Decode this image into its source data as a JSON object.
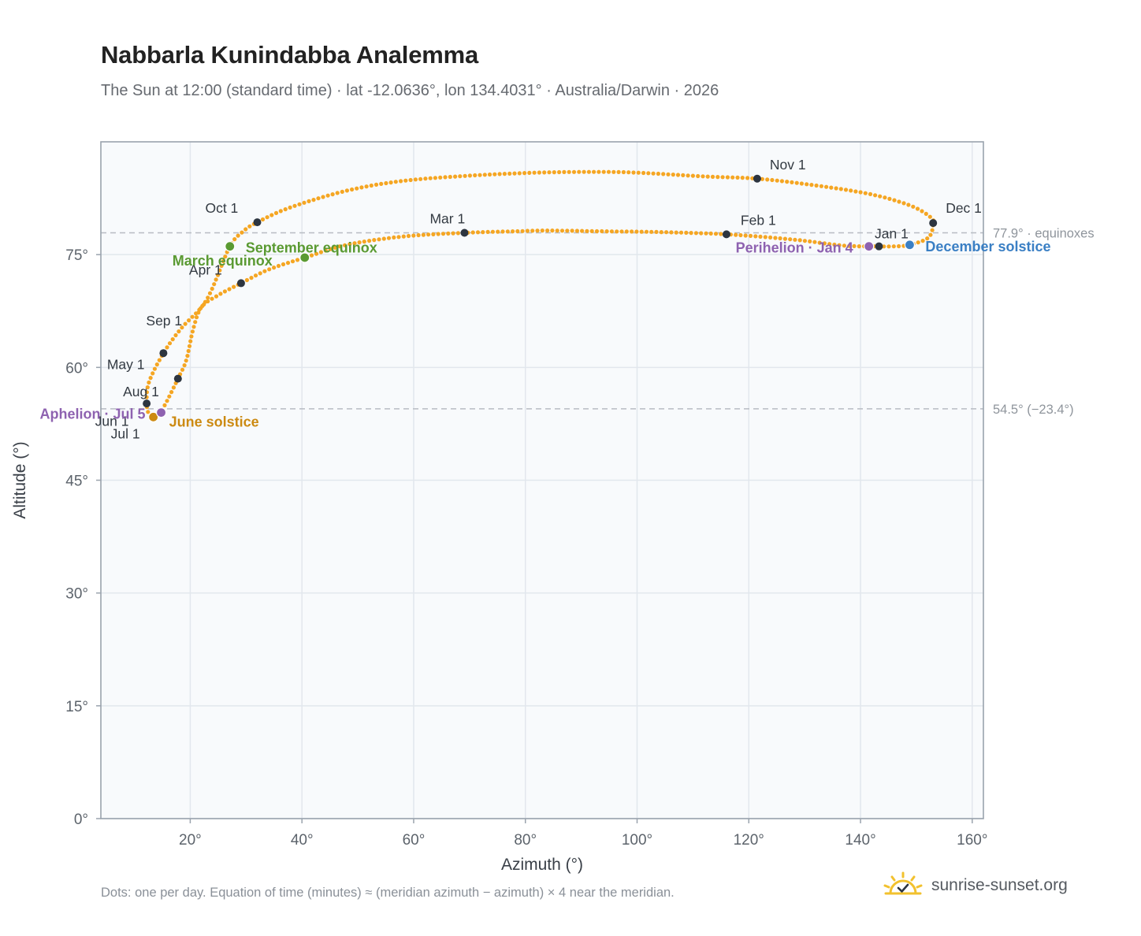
{
  "header": {
    "title": "Nabbarla Kunindabba Analemma",
    "subtitle": "The Sun at 12:00 (standard time) · lat -12.0636°, lon 134.4031° · Australia/Darwin · 2026"
  },
  "footer": {
    "note": "Dots: one per day. Equation of time (minutes) ≈ (meridian azimuth − azimuth) × 4 near the meridian.",
    "brand": "sunrise-sunset.org"
  },
  "colors": {
    "curve": "#f5a623",
    "month_marker": "#2d3540",
    "equinox": "#5a9a32",
    "june_solstice": "#cc8a12",
    "december_solstice": "#3a7fc4",
    "apsis": "#8e62b0",
    "reference_line": "#b8bcc2",
    "plot_background": "#f8fafc",
    "grid": "#e2e7ed",
    "frame": "#9aa3ad"
  },
  "chart_data": {
    "type": "scatter",
    "title": "Nabbarla Kunindabba Analemma",
    "subtitle": "The Sun at 12:00 (standard time) · lat -12.0636°, lon 134.4031° · Australia/Darwin · 2026",
    "xlabel": "Azimuth (°)",
    "ylabel": "Altitude (°)",
    "xlim": [
      4,
      162
    ],
    "ylim": [
      0,
      90
    ],
    "x_ticks": [
      20,
      40,
      60,
      80,
      100,
      120,
      140,
      160
    ],
    "x_tick_labels": [
      "20°",
      "40°",
      "60°",
      "80°",
      "100°",
      "120°",
      "140°",
      "160°"
    ],
    "y_ticks": [
      0,
      15,
      30,
      45,
      60,
      75
    ],
    "y_tick_labels": [
      "0°",
      "15°",
      "30°",
      "45°",
      "60°",
      "75°"
    ],
    "grid": true,
    "legend": "none",
    "series": [
      {
        "path_points": [
          [
            143.3,
            76.1
          ],
          [
            137.0,
            76.2
          ],
          [
            128.0,
            77.0
          ],
          [
            116.0,
            77.7
          ],
          [
            104.0,
            78.0
          ],
          [
            94.0,
            78.1
          ],
          [
            84.0,
            78.2
          ],
          [
            78.0,
            78.1
          ],
          [
            69.1,
            77.9
          ],
          [
            58.0,
            77.4
          ],
          [
            48.0,
            76.3
          ],
          [
            40.5,
            74.6
          ],
          [
            34.0,
            73.0
          ],
          [
            29.1,
            71.2
          ],
          [
            25.0,
            69.6
          ],
          [
            22.0,
            68.0
          ],
          [
            20.5,
            65.0
          ],
          [
            19.3,
            61.0
          ],
          [
            17.8,
            58.5
          ],
          [
            15.6,
            55.2
          ],
          [
            14.5,
            54.0
          ],
          [
            13.4,
            53.4
          ],
          [
            12.6,
            53.8
          ],
          [
            12.2,
            55.2
          ],
          [
            12.6,
            58.0
          ],
          [
            15.2,
            61.9
          ],
          [
            18.4,
            65.2
          ],
          [
            22.0,
            68.0
          ],
          [
            24.0,
            70.6
          ],
          [
            27.1,
            76.1
          ],
          [
            29.5,
            78.1
          ],
          [
            32.0,
            79.3
          ],
          [
            38.0,
            81.3
          ],
          [
            48.0,
            83.5
          ],
          [
            58.0,
            84.8
          ],
          [
            70.0,
            85.5
          ],
          [
            82.0,
            85.9
          ],
          [
            92.0,
            86.0
          ],
          [
            100.0,
            85.9
          ],
          [
            112.0,
            85.4
          ],
          [
            121.5,
            85.1
          ],
          [
            132.0,
            84.2
          ],
          [
            142.0,
            83.0
          ],
          [
            149.0,
            81.5
          ],
          [
            152.5,
            80.0
          ],
          [
            153.0,
            79.2
          ],
          [
            152.2,
            77.3
          ],
          [
            148.8,
            76.3
          ],
          [
            146.0,
            76.1
          ],
          [
            143.3,
            76.1
          ]
        ]
      }
    ],
    "month_markers": [
      {
        "label": "Jan 1",
        "az": 143.3,
        "alt": 76.1
      },
      {
        "label": "Feb 1",
        "az": 116.0,
        "alt": 77.7
      },
      {
        "label": "Mar 1",
        "az": 69.1,
        "alt": 77.9
      },
      {
        "label": "Apr 1",
        "az": 29.1,
        "alt": 71.2
      },
      {
        "label": "May 1",
        "az": 17.8,
        "alt": 58.5
      },
      {
        "label": "Jul 1",
        "az": 13.4,
        "alt": 53.4
      },
      {
        "label": "Aug 1",
        "az": 12.2,
        "alt": 55.2
      },
      {
        "label": "Sep 1",
        "az": 15.2,
        "alt": 61.9
      },
      {
        "label": "Oct 1",
        "az": 32.0,
        "alt": 79.3
      },
      {
        "label": "Nov 1",
        "az": 121.5,
        "alt": 85.1
      },
      {
        "label": "Dec 1",
        "az": 153.0,
        "alt": 79.2
      }
    ],
    "extra_labels": [
      "Jun 1"
    ],
    "events": [
      {
        "label": "March equinox",
        "az": 40.5,
        "alt": 74.6,
        "kind": "equinox"
      },
      {
        "label": "September equinox",
        "az": 27.1,
        "alt": 76.1,
        "kind": "equinox"
      },
      {
        "label": "June solstice",
        "az": 13.4,
        "alt": 53.4,
        "kind": "june_solstice"
      },
      {
        "label": "December solstice",
        "az": 148.8,
        "alt": 76.3,
        "kind": "december_solstice"
      },
      {
        "label": "Perihelion · Jan 4",
        "az": 141.5,
        "alt": 76.1,
        "kind": "apsis"
      },
      {
        "label": "Aphelion · Jul 5",
        "az": 14.8,
        "alt": 54.0,
        "kind": "apsis"
      }
    ],
    "reference_lines": [
      {
        "alt": 77.9,
        "label": "77.9° · equinoxes"
      },
      {
        "alt": 54.5,
        "label": "54.5° (−23.4°)"
      }
    ]
  }
}
